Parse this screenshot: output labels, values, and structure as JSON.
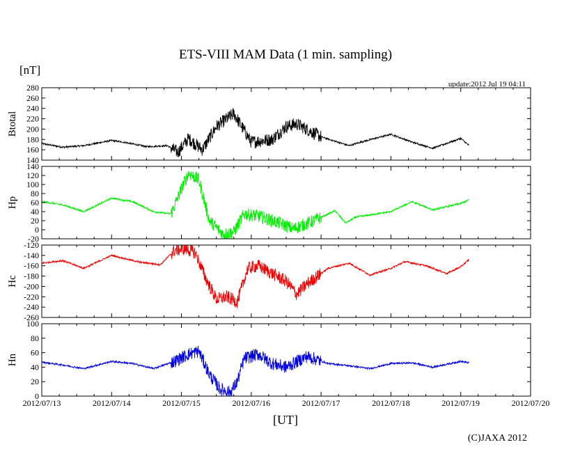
{
  "chart_data": {
    "type": "line",
    "title": "ETS-VIII MAM Data (1 min. sampling)",
    "y_unit": "[nT]",
    "update": "update:2012 Jul 19 04:11",
    "xlabel": "[UT]",
    "credit": "(C)JAXA 2012",
    "x_ticks": [
      "2012/07/13",
      "2012/07/14",
      "2012/07/15",
      "2012/07/16",
      "2012/07/17",
      "2012/07/18",
      "2012/07/19",
      "2012/07/20"
    ],
    "x_range_days": [
      0,
      7
    ],
    "data_end_day": 6.12,
    "panels": [
      {
        "name": "Btotal",
        "color": "#000000",
        "ylim": [
          140,
          280
        ],
        "yticks": [
          140,
          160,
          180,
          200,
          220,
          240,
          260,
          280
        ],
        "x": [
          0,
          0.3,
          0.6,
          1.0,
          1.2,
          1.5,
          1.8,
          1.95,
          2.1,
          2.3,
          2.5,
          2.75,
          3.0,
          3.3,
          3.5,
          3.65,
          4.0,
          4.4,
          4.6,
          5.0,
          5.3,
          5.6,
          6.0,
          6.12
        ],
        "values": [
          172,
          165,
          168,
          178,
          174,
          166,
          168,
          155,
          182,
          160,
          205,
          230,
          175,
          180,
          205,
          210,
          185,
          168,
          176,
          190,
          175,
          163,
          182,
          168
        ]
      },
      {
        "name": "Hp",
        "color": "#00ee00",
        "ylim": [
          -20,
          140
        ],
        "yticks": [
          -20,
          0,
          20,
          40,
          60,
          80,
          100,
          120,
          140
        ],
        "x": [
          0,
          0.3,
          0.6,
          1.0,
          1.3,
          1.6,
          1.85,
          2.0,
          2.1,
          2.25,
          2.4,
          2.6,
          2.75,
          2.9,
          3.1,
          3.4,
          3.6,
          3.9,
          4.2,
          4.35,
          4.5,
          5.0,
          5.3,
          5.6,
          6.0,
          6.12
        ],
        "values": [
          62,
          55,
          40,
          70,
          62,
          40,
          35,
          90,
          125,
          110,
          20,
          -10,
          -5,
          35,
          30,
          15,
          2,
          20,
          42,
          15,
          28,
          40,
          62,
          44,
          58,
          66
        ]
      },
      {
        "name": "Hc",
        "color": "#ee0000",
        "ylim": [
          -260,
          -120
        ],
        "yticks": [
          -260,
          -240,
          -220,
          -200,
          -180,
          -160,
          -140,
          -120
        ],
        "x": [
          0,
          0.3,
          0.6,
          1.0,
          1.4,
          1.7,
          1.9,
          2.05,
          2.2,
          2.35,
          2.5,
          2.65,
          2.8,
          2.95,
          3.1,
          3.3,
          3.5,
          3.65,
          3.8,
          4.1,
          4.4,
          4.7,
          5.0,
          5.2,
          5.5,
          5.8,
          6.0,
          6.12
        ],
        "values": [
          -155,
          -150,
          -165,
          -140,
          -153,
          -158,
          -130,
          -127,
          -135,
          -185,
          -225,
          -220,
          -230,
          -165,
          -160,
          -175,
          -190,
          -215,
          -195,
          -165,
          -155,
          -178,
          -165,
          -152,
          -160,
          -175,
          -162,
          -148
        ]
      },
      {
        "name": "Hn",
        "color": "#0000dd",
        "ylim": [
          0,
          100
        ],
        "yticks": [
          0,
          20,
          40,
          60,
          80,
          100
        ],
        "x": [
          0,
          0.3,
          0.6,
          1.0,
          1.3,
          1.6,
          1.9,
          2.1,
          2.25,
          2.4,
          2.55,
          2.7,
          2.8,
          2.9,
          3.1,
          3.3,
          3.5,
          3.8,
          4.1,
          4.4,
          4.7,
          5.0,
          5.3,
          5.6,
          6.0,
          6.12
        ],
        "values": [
          47,
          43,
          38,
          48,
          45,
          38,
          48,
          58,
          62,
          30,
          10,
          5,
          20,
          52,
          58,
          45,
          40,
          55,
          45,
          42,
          38,
          45,
          46,
          40,
          48,
          46
        ]
      }
    ]
  }
}
